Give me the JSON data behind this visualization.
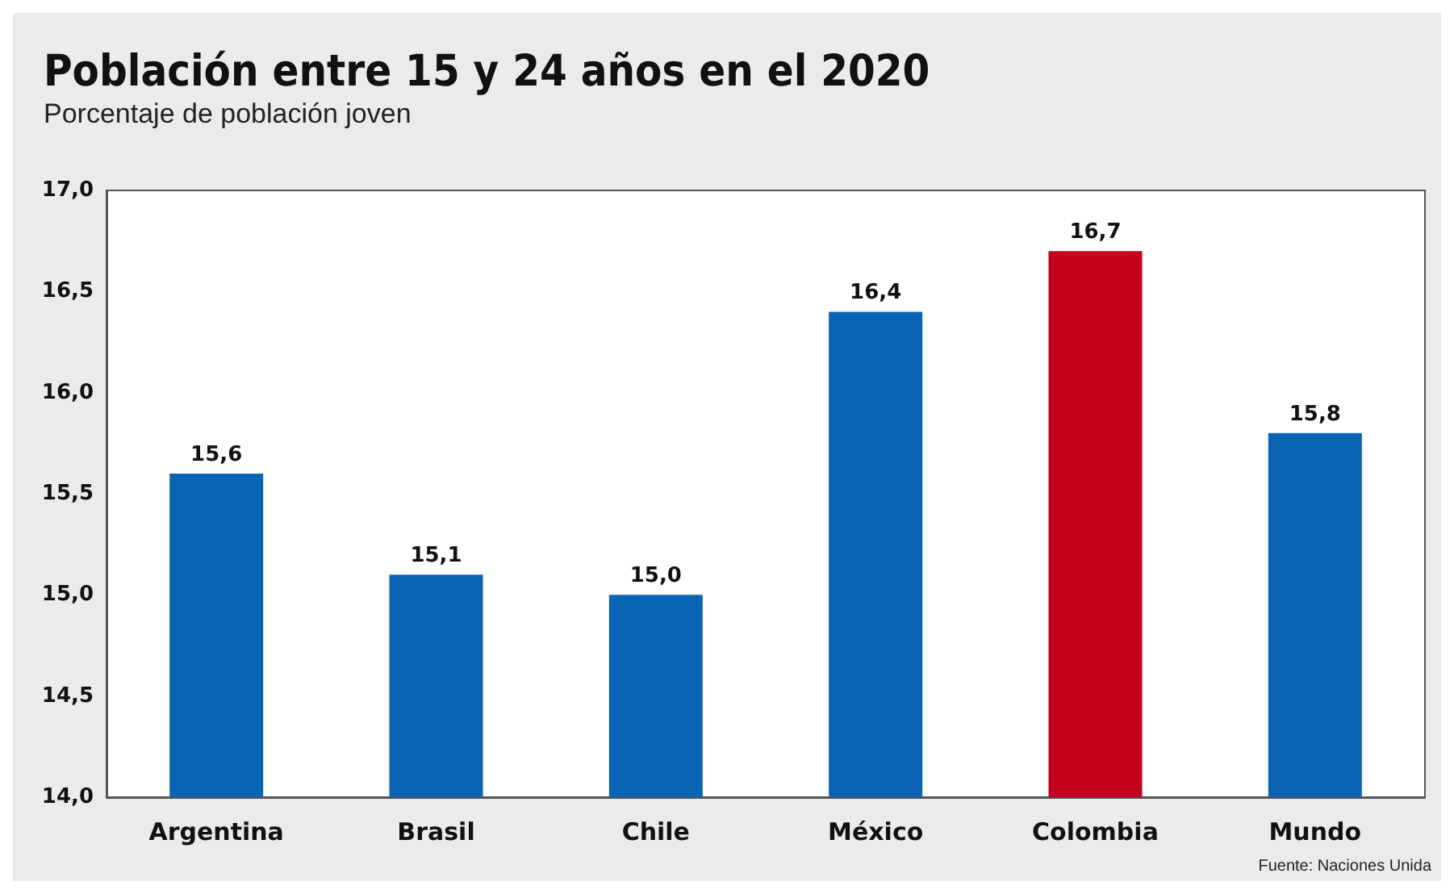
{
  "chart_data": {
    "type": "bar",
    "title": "Población entre 15 y 24 años en el 2020",
    "subtitle": "Porcentaje de población joven",
    "categories": [
      "Argentina",
      "Brasil",
      "Chile",
      "México",
      "Colombia",
      "Mundo"
    ],
    "values": [
      15.6,
      15.1,
      15.0,
      16.4,
      16.7,
      15.8
    ],
    "value_labels": [
      "15,6",
      "15,1",
      "15,0",
      "16,4",
      "16,7",
      "15,8"
    ],
    "colors": [
      "#0b63b3",
      "#0b63b3",
      "#0b63b3",
      "#0b63b3",
      "#c4001f",
      "#0b63b3"
    ],
    "ylim": [
      14,
      17
    ],
    "yticks": [
      {
        "value": 14,
        "label": "14,0"
      },
      {
        "value": 14.5,
        "label": "14,5"
      },
      {
        "value": 15,
        "label": "15,0"
      },
      {
        "value": 15.5,
        "label": "15,5"
      },
      {
        "value": 16,
        "label": "16,0"
      },
      {
        "value": 16.5,
        "label": "16,5"
      },
      {
        "value": 17,
        "label": "17,0"
      }
    ],
    "annotations": [
      "Fuente: Naciones Unida"
    ]
  }
}
